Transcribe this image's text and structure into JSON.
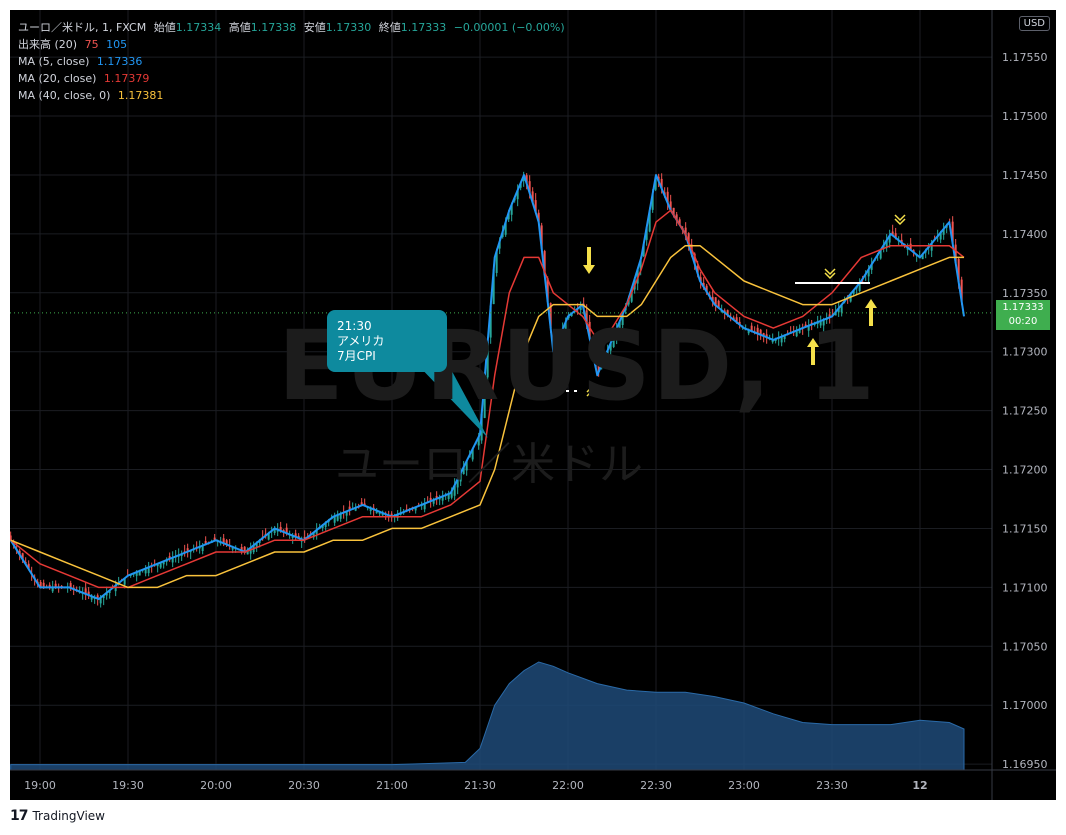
{
  "legend": {
    "symbol_line": "ユーロ／米ドル, 1, FXCM",
    "open_label": "始値",
    "open": "1.17334",
    "high_label": "高値",
    "high": "1.17338",
    "low_label": "安値",
    "low": "1.17330",
    "close_label": "終値",
    "close": "1.17333",
    "change": "−0.00001 (−0.00%)",
    "volume_label": "出来高 (20)",
    "volume_v1": "75",
    "volume_v2": "105",
    "ma1_label": "MA (5, close)",
    "ma1_value": "1.17336",
    "ma2_label": "MA (20, close)",
    "ma2_value": "1.17379",
    "ma3_label": "MA (40, close, 0)",
    "ma3_value": "1.17381"
  },
  "currency": "USD",
  "watermark": {
    "symbol": "EURUSD, 1",
    "description": "ユーロ／米ドル"
  },
  "annotation": {
    "time": "21:30",
    "country": "アメリカ",
    "event": "7月CPI"
  },
  "price_tag": {
    "price": "1.17333",
    "countdown": "00:20"
  },
  "footer": {
    "brand": "TradingView"
  },
  "colors": {
    "background": "#000000",
    "up": "#26a69a",
    "down": "#ef5350",
    "ma5": "#2196f3",
    "ma20": "#e53935",
    "ma40": "#f9c23c",
    "volume_area": "#1e4a78",
    "annotation": "#0e8a9e",
    "arrows": "#f5e04a",
    "price_tag": "#3fae4f"
  },
  "chart_data": {
    "type": "line",
    "title": "ユーロ／米ドル, 1, FXCM",
    "x_ticks": [
      "19:00",
      "19:30",
      "20:00",
      "20:30",
      "21:00",
      "21:30",
      "22:00",
      "22:30",
      "23:00",
      "23:30",
      "12"
    ],
    "y_ticks": [
      "1.17550",
      "1.17500",
      "1.17450",
      "1.17400",
      "1.17350",
      "1.17300",
      "1.17250",
      "1.17200",
      "1.17150",
      "1.17100",
      "1.17050",
      "1.17000",
      "1.16950"
    ],
    "ylim": [
      1.16945,
      1.1759
    ],
    "grid": true,
    "current_price": 1.17333,
    "series": [
      {
        "name": "MA (5, close)",
        "color": "#2196f3",
        "x": [
          "18:50",
          "19:00",
          "19:10",
          "19:20",
          "19:30",
          "19:40",
          "19:50",
          "20:00",
          "20:10",
          "20:20",
          "20:30",
          "20:40",
          "20:50",
          "21:00",
          "21:10",
          "21:20",
          "21:30",
          "21:35",
          "21:40",
          "21:45",
          "21:50",
          "21:55",
          "22:00",
          "22:05",
          "22:10",
          "22:15",
          "22:20",
          "22:25",
          "22:30",
          "22:35",
          "22:40",
          "22:45",
          "22:50",
          "23:00",
          "23:10",
          "23:20",
          "23:30",
          "23:40",
          "23:50",
          "24:00",
          "24:10",
          "24:15"
        ],
        "y": [
          1.1714,
          1.171,
          1.171,
          1.1709,
          1.1711,
          1.1712,
          1.1713,
          1.1714,
          1.1713,
          1.1715,
          1.1714,
          1.1716,
          1.1717,
          1.1716,
          1.1717,
          1.1718,
          1.1723,
          1.1738,
          1.1742,
          1.1745,
          1.1741,
          1.173,
          1.1733,
          1.1734,
          1.1728,
          1.1731,
          1.1734,
          1.1738,
          1.1745,
          1.1742,
          1.174,
          1.1736,
          1.1734,
          1.1732,
          1.1731,
          1.1732,
          1.1733,
          1.1736,
          1.174,
          1.1738,
          1.1741,
          1.1733
        ]
      },
      {
        "name": "MA (20, close)",
        "color": "#e53935",
        "x": [
          "18:50",
          "19:00",
          "19:10",
          "19:20",
          "19:30",
          "19:40",
          "19:50",
          "20:00",
          "20:10",
          "20:20",
          "20:30",
          "20:40",
          "20:50",
          "21:00",
          "21:10",
          "21:20",
          "21:30",
          "21:35",
          "21:40",
          "21:45",
          "21:50",
          "21:55",
          "22:00",
          "22:05",
          "22:10",
          "22:15",
          "22:20",
          "22:25",
          "22:30",
          "22:35",
          "22:40",
          "22:45",
          "22:50",
          "23:00",
          "23:10",
          "23:20",
          "23:30",
          "23:40",
          "23:50",
          "24:00",
          "24:10",
          "24:15"
        ],
        "y": [
          1.1714,
          1.1712,
          1.1711,
          1.171,
          1.171,
          1.1711,
          1.1712,
          1.1713,
          1.1713,
          1.1714,
          1.1714,
          1.1715,
          1.1716,
          1.1716,
          1.1716,
          1.1717,
          1.1719,
          1.1728,
          1.1735,
          1.1738,
          1.1738,
          1.1735,
          1.1734,
          1.1733,
          1.1731,
          1.1732,
          1.1734,
          1.1737,
          1.1741,
          1.1742,
          1.174,
          1.1737,
          1.1735,
          1.1733,
          1.1732,
          1.1733,
          1.1735,
          1.1738,
          1.1739,
          1.1739,
          1.1739,
          1.1738
        ]
      },
      {
        "name": "MA (40, close, 0)",
        "color": "#f9c23c",
        "x": [
          "18:50",
          "19:00",
          "19:10",
          "19:20",
          "19:30",
          "19:40",
          "19:50",
          "20:00",
          "20:10",
          "20:20",
          "20:30",
          "20:40",
          "20:50",
          "21:00",
          "21:10",
          "21:20",
          "21:30",
          "21:35",
          "21:40",
          "21:45",
          "21:50",
          "21:55",
          "22:00",
          "22:05",
          "22:10",
          "22:15",
          "22:20",
          "22:25",
          "22:30",
          "22:35",
          "22:40",
          "22:45",
          "22:50",
          "23:00",
          "23:10",
          "23:20",
          "23:30",
          "23:40",
          "23:50",
          "24:00",
          "24:10",
          "24:15"
        ],
        "y": [
          1.1714,
          1.1713,
          1.1712,
          1.1711,
          1.171,
          1.171,
          1.1711,
          1.1711,
          1.1712,
          1.1713,
          1.1713,
          1.1714,
          1.1714,
          1.1715,
          1.1715,
          1.1716,
          1.1717,
          1.172,
          1.1725,
          1.173,
          1.1733,
          1.1734,
          1.1734,
          1.1734,
          1.1733,
          1.1733,
          1.1733,
          1.1734,
          1.1736,
          1.1738,
          1.1739,
          1.1739,
          1.1738,
          1.1736,
          1.1735,
          1.1734,
          1.1734,
          1.1735,
          1.1736,
          1.1737,
          1.1738,
          1.1738
        ]
      },
      {
        "name": "出来高 (20)",
        "color": "#1e4a78",
        "x": [
          "18:50",
          "19:30",
          "20:00",
          "20:30",
          "21:00",
          "21:25",
          "21:30",
          "21:35",
          "21:40",
          "21:45",
          "21:50",
          "21:55",
          "22:00",
          "22:10",
          "22:20",
          "22:30",
          "22:40",
          "22:50",
          "23:00",
          "23:10",
          "23:20",
          "23:30",
          "23:40",
          "23:50",
          "24:00",
          "24:10",
          "24:15"
        ],
        "y": [
          5,
          5,
          5,
          5,
          5,
          7,
          20,
          60,
          80,
          92,
          100,
          96,
          90,
          80,
          74,
          72,
          72,
          68,
          62,
          52,
          44,
          42,
          42,
          42,
          46,
          44,
          38
        ]
      }
    ]
  }
}
